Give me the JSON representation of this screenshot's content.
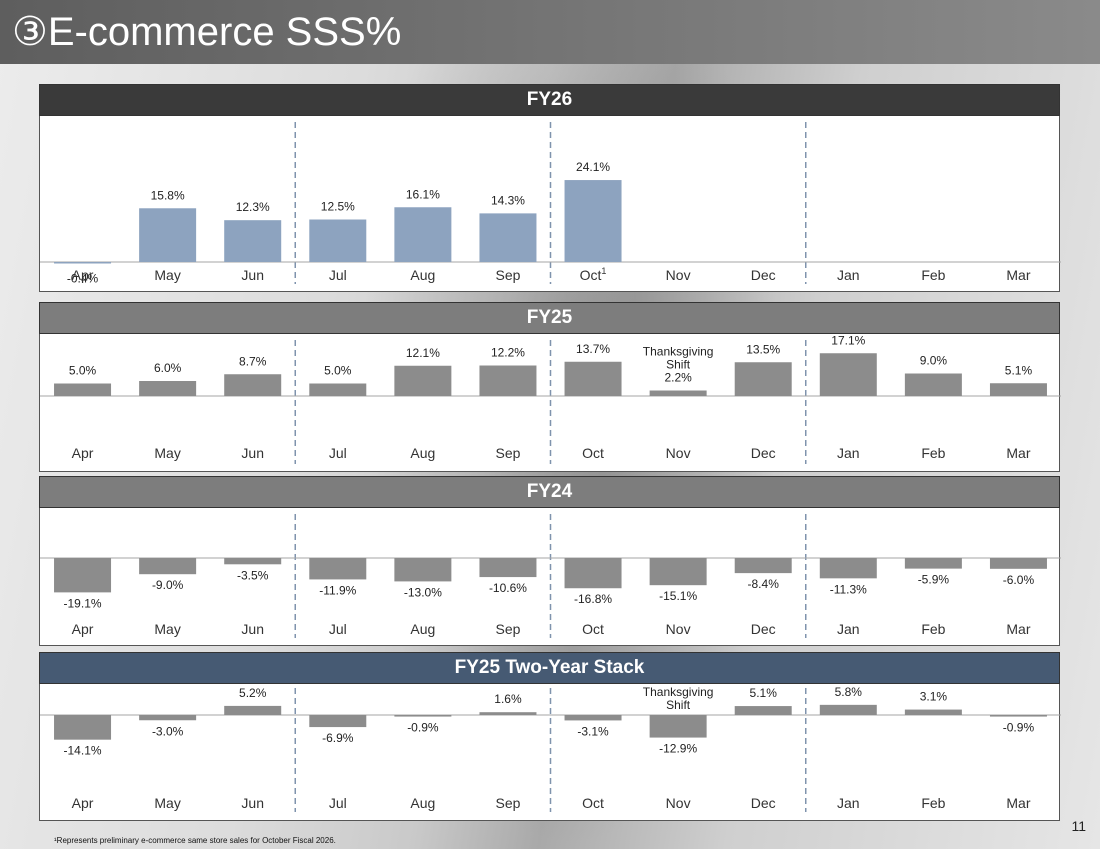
{
  "header": {
    "title": "③E-commerce SSS%"
  },
  "page_number": "11",
  "footnote": "¹Represents preliminary e-commerce same store sales for October Fiscal 2026.",
  "colors": {
    "fy26_bar": "#8da3bf",
    "gray_bar": "#8c8c8c",
    "stack_header": "#465a73",
    "fy26_header": "#3a3a3a",
    "gray_header": "#7d7d7d"
  },
  "chart_data": [
    {
      "type": "bar",
      "title": "FY26",
      "categories": [
        "Apr",
        "May",
        "Jun",
        "Jul",
        "Aug",
        "Sep",
        "Oct",
        "Nov",
        "Dec",
        "Jan",
        "Feb",
        "Mar"
      ],
      "category_superscripts": {
        "Oct": "1"
      },
      "values": [
        -0.4,
        15.8,
        12.3,
        12.5,
        16.1,
        14.3,
        24.1,
        null,
        null,
        null,
        null,
        null
      ],
      "labels": [
        "-0.4%",
        "15.8%",
        "12.3%",
        "12.5%",
        "16.1%",
        "14.3%",
        "24.1%",
        "",
        "",
        "",
        "",
        ""
      ],
      "annotations": {},
      "ylim": [
        -2,
        25
      ],
      "grid": false
    },
    {
      "type": "bar",
      "title": "FY25",
      "categories": [
        "Apr",
        "May",
        "Jun",
        "Jul",
        "Aug",
        "Sep",
        "Oct",
        "Nov",
        "Dec",
        "Jan",
        "Feb",
        "Mar"
      ],
      "values": [
        5.0,
        6.0,
        8.7,
        5.0,
        12.1,
        12.2,
        13.7,
        2.2,
        13.5,
        17.1,
        9.0,
        5.1
      ],
      "labels": [
        "5.0%",
        "6.0%",
        "8.7%",
        "5.0%",
        "12.1%",
        "12.2%",
        "13.7%",
        "2.2%",
        "13.5%",
        "17.1%",
        "9.0%",
        "5.1%"
      ],
      "annotations": {
        "Nov": [
          "Thanksgiving",
          "Shift"
        ]
      },
      "ylim": [
        -5,
        18
      ],
      "grid": false
    },
    {
      "type": "bar",
      "title": "FY24",
      "categories": [
        "Apr",
        "May",
        "Jun",
        "Jul",
        "Aug",
        "Sep",
        "Oct",
        "Nov",
        "Dec",
        "Jan",
        "Feb",
        "Mar"
      ],
      "values": [
        -19.1,
        -9.0,
        -3.5,
        -11.9,
        -13.0,
        -10.6,
        -16.8,
        -15.1,
        -8.4,
        -11.3,
        -5.9,
        -6.0
      ],
      "labels": [
        "-19.1%",
        "-9.0%",
        "-3.5%",
        "-11.9%",
        "-13.0%",
        "-10.6%",
        "-16.8%",
        "-15.1%",
        "-8.4%",
        "-11.3%",
        "-5.9%",
        "-6.0%"
      ],
      "annotations": {},
      "ylim": [
        -30,
        5
      ],
      "grid": false
    },
    {
      "type": "bar",
      "title": "FY25 Two-Year Stack",
      "categories": [
        "Apr",
        "May",
        "Jun",
        "Jul",
        "Aug",
        "Sep",
        "Oct",
        "Nov",
        "Dec",
        "Jan",
        "Feb",
        "Mar"
      ],
      "values": [
        -14.1,
        -3.0,
        5.2,
        -6.9,
        -0.9,
        1.6,
        -3.1,
        -12.9,
        5.1,
        5.8,
        3.1,
        -0.9
      ],
      "labels": [
        "-14.1%",
        "-3.0%",
        "5.2%",
        "-6.9%",
        "-0.9%",
        "1.6%",
        "-3.1%",
        "-12.9%",
        "5.1%",
        "5.8%",
        "3.1%",
        "-0.9%"
      ],
      "annotations": {
        "Nov": [
          "Thanksgiving",
          "Shift"
        ]
      },
      "ylim": [
        -25,
        10
      ],
      "grid": false
    }
  ]
}
